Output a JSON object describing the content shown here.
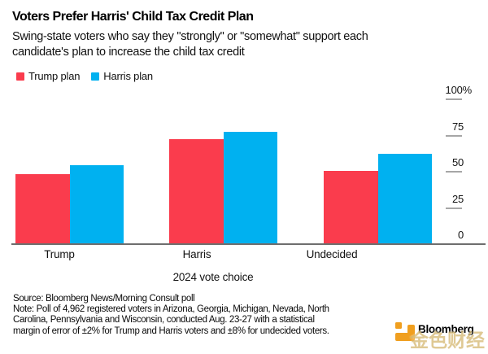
{
  "header": {
    "title": "Voters Prefer Harris' Child Tax Credit Plan",
    "subtitle_lines": [
      "Swing-state voters who say they \"strongly\" or \"somewhat\" support each",
      "candidate's plan to increase the child tax credit"
    ]
  },
  "chart_data": {
    "type": "bar",
    "title": "Voters Prefer Harris' Child Tax Credit Plan",
    "subtitle": "Swing-state voters who say they \"strongly\" or \"somewhat\" support each candidate's plan to increase the child tax credit",
    "categories": [
      "Trump",
      "Harris",
      "Undecided"
    ],
    "series": [
      {
        "name": "Trump plan",
        "color": "#fa3c4d",
        "values": [
          48,
          72,
          50
        ]
      },
      {
        "name": "Harris plan",
        "color": "#00b1f0",
        "values": [
          54,
          77,
          62
        ]
      }
    ],
    "xlabel": "2024 vote choice",
    "ylabel": "",
    "ylim": [
      0,
      100
    ],
    "yticks": [
      0,
      25,
      50,
      75,
      100
    ],
    "ytick_labels": [
      "0",
      "25",
      "50",
      "75",
      "100%"
    ],
    "grid": false,
    "legend_position": "top-left",
    "unit": "percent of voters supporting each plan"
  },
  "footer": {
    "source_line": "Source: Bloomberg News/Morning Consult poll",
    "note_lines": [
      "Note: Poll of 4,962 registered voters in Arizona, Georgia, Michigan, Nevada, North",
      "Carolina, Pennsylvania and Wisconsin, conducted Aug. 23-27 with a statistical",
      "margin of error of ±2% for Trump and Harris voters and ±8% for undecided voters."
    ],
    "brand": "Bloomberg",
    "watermark": "金色财经"
  },
  "colors": {
    "trump_plan": "#fa3c4d",
    "harris_plan": "#00b1f0",
    "axis_line": "#6e6e6e",
    "tick_dash": "#a6a6a6",
    "brand_orange": "#f09f1f",
    "watermark_gold": "#cba852"
  }
}
